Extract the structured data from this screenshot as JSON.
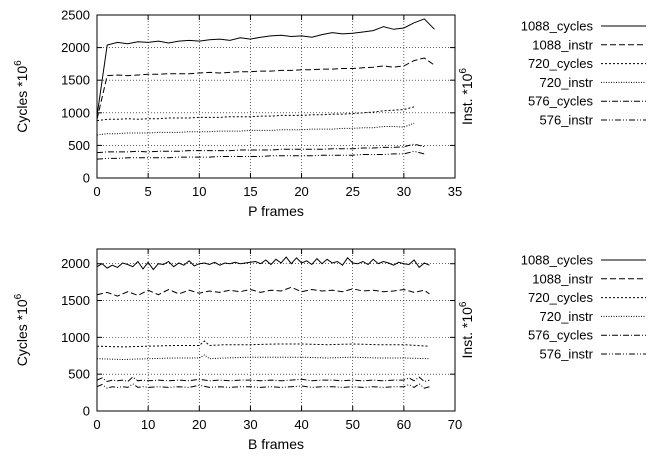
{
  "chart_data": [
    {
      "type": "line",
      "xlabel": "P frames",
      "ylabel": "Cycles *10",
      "ylabel_exponent": "6",
      "y2label": "Inst. *10",
      "y2label_exponent": "6",
      "xlim": [
        0,
        35
      ],
      "ylim": [
        0,
        2500
      ],
      "xticks": [
        0,
        5,
        10,
        15,
        20,
        25,
        30,
        35
      ],
      "yticks": [
        0,
        500,
        1000,
        1500,
        2000,
        2500
      ],
      "grid": true,
      "legend_position": "right",
      "series": [
        {
          "name": "1088_cycles",
          "style": "solid",
          "color": "#000000",
          "x": [
            0,
            1,
            2,
            3,
            4,
            5,
            6,
            7,
            8,
            9,
            10,
            11,
            12,
            13,
            14,
            15,
            16,
            17,
            18,
            19,
            20,
            21,
            22,
            23,
            24,
            25,
            26,
            27,
            28,
            29,
            30,
            31,
            32,
            33
          ],
          "y": [
            950,
            2040,
            2080,
            2060,
            2090,
            2080,
            2100,
            2070,
            2100,
            2110,
            2100,
            2120,
            2130,
            2110,
            2150,
            2130,
            2160,
            2180,
            2190,
            2170,
            2180,
            2160,
            2200,
            2230,
            2210,
            2220,
            2240,
            2260,
            2320,
            2280,
            2300,
            2380,
            2440,
            2280
          ]
        },
        {
          "name": "1088_instr",
          "style": "dashed",
          "color": "#000000",
          "x": [
            0,
            1,
            2,
            3,
            4,
            5,
            6,
            7,
            8,
            9,
            10,
            11,
            12,
            13,
            14,
            15,
            16,
            17,
            18,
            19,
            20,
            21,
            22,
            23,
            24,
            25,
            26,
            27,
            28,
            29,
            30,
            31,
            32,
            33
          ],
          "y": [
            900,
            1570,
            1580,
            1570,
            1580,
            1590,
            1590,
            1600,
            1600,
            1600,
            1610,
            1620,
            1610,
            1620,
            1630,
            1630,
            1640,
            1640,
            1650,
            1650,
            1660,
            1660,
            1670,
            1670,
            1680,
            1680,
            1690,
            1700,
            1720,
            1700,
            1720,
            1800,
            1840,
            1730
          ]
        },
        {
          "name": "720_cycles",
          "style": "dotted",
          "color": "#000000",
          "x": [
            0,
            1,
            2,
            3,
            4,
            5,
            6,
            7,
            8,
            9,
            10,
            11,
            12,
            13,
            14,
            15,
            16,
            17,
            18,
            19,
            20,
            21,
            22,
            23,
            24,
            25,
            26,
            27,
            28,
            29,
            30,
            31
          ],
          "y": [
            880,
            900,
            900,
            910,
            900,
            910,
            910,
            920,
            920,
            920,
            930,
            930,
            930,
            940,
            940,
            940,
            950,
            950,
            960,
            960,
            960,
            970,
            970,
            980,
            980,
            990,
            1000,
            1010,
            1030,
            1040,
            1050,
            1090
          ]
        },
        {
          "name": "720_instr",
          "style": "fine-dotted",
          "color": "#000000",
          "x": [
            0,
            1,
            2,
            3,
            4,
            5,
            6,
            7,
            8,
            9,
            10,
            11,
            12,
            13,
            14,
            15,
            16,
            17,
            18,
            19,
            20,
            21,
            22,
            23,
            24,
            25,
            26,
            27,
            28,
            29,
            30,
            31
          ],
          "y": [
            660,
            680,
            680,
            690,
            690,
            690,
            700,
            700,
            700,
            710,
            710,
            710,
            720,
            720,
            720,
            730,
            730,
            730,
            740,
            740,
            740,
            750,
            750,
            750,
            760,
            760,
            770,
            770,
            790,
            790,
            780,
            840
          ]
        },
        {
          "name": "576_cycles",
          "style": "dash-dot",
          "color": "#000000",
          "x": [
            0,
            1,
            2,
            3,
            4,
            5,
            6,
            7,
            8,
            9,
            10,
            11,
            12,
            13,
            14,
            15,
            16,
            17,
            18,
            19,
            20,
            21,
            22,
            23,
            24,
            25,
            26,
            27,
            28,
            29,
            30,
            31,
            32
          ],
          "y": [
            390,
            400,
            400,
            400,
            410,
            400,
            410,
            410,
            410,
            420,
            420,
            420,
            420,
            420,
            430,
            430,
            430,
            430,
            440,
            440,
            440,
            440,
            440,
            450,
            450,
            450,
            460,
            460,
            470,
            470,
            480,
            520,
            480
          ]
        },
        {
          "name": "576_instr",
          "style": "dash-dot-dot",
          "color": "#000000",
          "x": [
            0,
            1,
            2,
            3,
            4,
            5,
            6,
            7,
            8,
            9,
            10,
            11,
            12,
            13,
            14,
            15,
            16,
            17,
            18,
            19,
            20,
            21,
            22,
            23,
            24,
            25,
            26,
            27,
            28,
            29,
            30,
            31,
            32
          ],
          "y": [
            290,
            300,
            300,
            310,
            310,
            310,
            310,
            310,
            320,
            320,
            320,
            320,
            330,
            330,
            330,
            330,
            330,
            340,
            340,
            340,
            340,
            340,
            350,
            350,
            350,
            350,
            360,
            360,
            360,
            370,
            370,
            410,
            370
          ]
        }
      ]
    },
    {
      "type": "line",
      "xlabel": "B frames",
      "ylabel": "Cycles *10",
      "ylabel_exponent": "6",
      "y2label": "Inst. *10",
      "y2label_exponent": "6",
      "xlim": [
        0,
        70
      ],
      "ylim": [
        0,
        2200
      ],
      "xticks": [
        0,
        10,
        20,
        30,
        40,
        50,
        60,
        70
      ],
      "yticks": [
        0,
        500,
        1000,
        1500,
        2000
      ],
      "grid": true,
      "legend_position": "right",
      "series": [
        {
          "name": "1088_cycles",
          "style": "solid",
          "color": "#000000",
          "x": [
            0,
            1,
            2,
            3,
            4,
            5,
            6,
            7,
            8,
            9,
            10,
            11,
            12,
            13,
            14,
            15,
            16,
            17,
            18,
            19,
            20,
            21,
            22,
            23,
            24,
            25,
            26,
            27,
            28,
            29,
            30,
            31,
            32,
            33,
            34,
            35,
            36,
            37,
            38,
            39,
            40,
            41,
            42,
            43,
            44,
            45,
            46,
            47,
            48,
            49,
            50,
            51,
            52,
            53,
            54,
            55,
            56,
            57,
            58,
            59,
            60,
            61,
            62,
            63,
            64,
            65
          ],
          "y": [
            1960,
            2000,
            1940,
            1980,
            1950,
            2010,
            1990,
            1960,
            2030,
            1930,
            2020,
            1920,
            2000,
            1990,
            2030,
            1960,
            2010,
            1980,
            2040,
            1970,
            2000,
            2010,
            1990,
            2020,
            1980,
            2010,
            2000,
            2020,
            2000,
            2010,
            2020,
            2030,
            2000,
            2050,
            1990,
            2060,
            2010,
            2090,
            2000,
            2080,
            2010,
            2040,
            1990,
            2070,
            2000,
            2060,
            2010,
            2030,
            1980,
            2080,
            2010,
            2000,
            2030,
            1990,
            2060,
            2000,
            2030,
            2010,
            1980,
            2020,
            2000,
            1990,
            2050,
            1950,
            2010,
            1980
          ]
        },
        {
          "name": "1088_instr",
          "style": "dashed",
          "color": "#000000",
          "x": [
            0,
            2,
            4,
            6,
            8,
            10,
            12,
            14,
            16,
            18,
            20,
            22,
            24,
            26,
            28,
            30,
            32,
            34,
            36,
            38,
            40,
            42,
            44,
            46,
            48,
            50,
            52,
            54,
            56,
            58,
            60,
            62,
            64,
            65
          ],
          "y": [
            1580,
            1610,
            1560,
            1620,
            1570,
            1640,
            1580,
            1650,
            1590,
            1640,
            1600,
            1630,
            1610,
            1640,
            1620,
            1650,
            1610,
            1640,
            1630,
            1680,
            1620,
            1650,
            1630,
            1640,
            1620,
            1660,
            1630,
            1640,
            1620,
            1630,
            1650,
            1610,
            1640,
            1590
          ]
        },
        {
          "name": "720_cycles",
          "style": "dotted",
          "color": "#000000",
          "x": [
            0,
            5,
            10,
            15,
            20,
            21,
            22,
            25,
            30,
            35,
            40,
            45,
            50,
            55,
            60,
            65
          ],
          "y": [
            880,
            870,
            880,
            890,
            890,
            950,
            890,
            900,
            900,
            910,
            910,
            900,
            910,
            900,
            900,
            880
          ]
        },
        {
          "name": "720_instr",
          "style": "fine-dotted",
          "color": "#000000",
          "x": [
            0,
            5,
            10,
            15,
            20,
            21,
            22,
            25,
            30,
            35,
            40,
            45,
            50,
            55,
            60,
            65
          ],
          "y": [
            710,
            700,
            710,
            720,
            720,
            760,
            710,
            720,
            730,
            730,
            730,
            720,
            730,
            720,
            720,
            710
          ]
        },
        {
          "name": "576_cycles",
          "style": "dash-dot",
          "color": "#000000",
          "x": [
            0,
            1,
            2,
            3,
            4,
            5,
            6,
            7,
            8,
            9,
            10,
            12,
            14,
            16,
            18,
            20,
            22,
            24,
            26,
            28,
            30,
            32,
            34,
            36,
            38,
            40,
            42,
            44,
            46,
            48,
            50,
            52,
            54,
            56,
            58,
            60,
            61,
            62,
            63,
            64,
            65
          ],
          "y": [
            420,
            450,
            400,
            420,
            410,
            420,
            400,
            460,
            410,
            420,
            410,
            420,
            410,
            420,
            410,
            430,
            410,
            420,
            410,
            420,
            420,
            410,
            420,
            410,
            420,
            430,
            410,
            420,
            420,
            410,
            420,
            410,
            420,
            410,
            420,
            420,
            450,
            410,
            460,
            400,
            420
          ]
        },
        {
          "name": "576_instr",
          "style": "dash-dot-dot",
          "color": "#000000",
          "x": [
            0,
            1,
            2,
            3,
            4,
            5,
            6,
            7,
            8,
            9,
            10,
            12,
            14,
            16,
            18,
            20,
            22,
            24,
            26,
            28,
            30,
            32,
            34,
            36,
            38,
            40,
            42,
            44,
            46,
            48,
            50,
            52,
            54,
            56,
            58,
            60,
            61,
            62,
            63,
            64,
            65
          ],
          "y": [
            330,
            360,
            310,
            330,
            320,
            330,
            320,
            370,
            320,
            330,
            320,
            330,
            320,
            330,
            320,
            350,
            320,
            330,
            320,
            330,
            330,
            320,
            330,
            320,
            330,
            340,
            320,
            330,
            330,
            320,
            330,
            320,
            330,
            320,
            330,
            330,
            360,
            320,
            370,
            310,
            330
          ]
        }
      ]
    }
  ]
}
